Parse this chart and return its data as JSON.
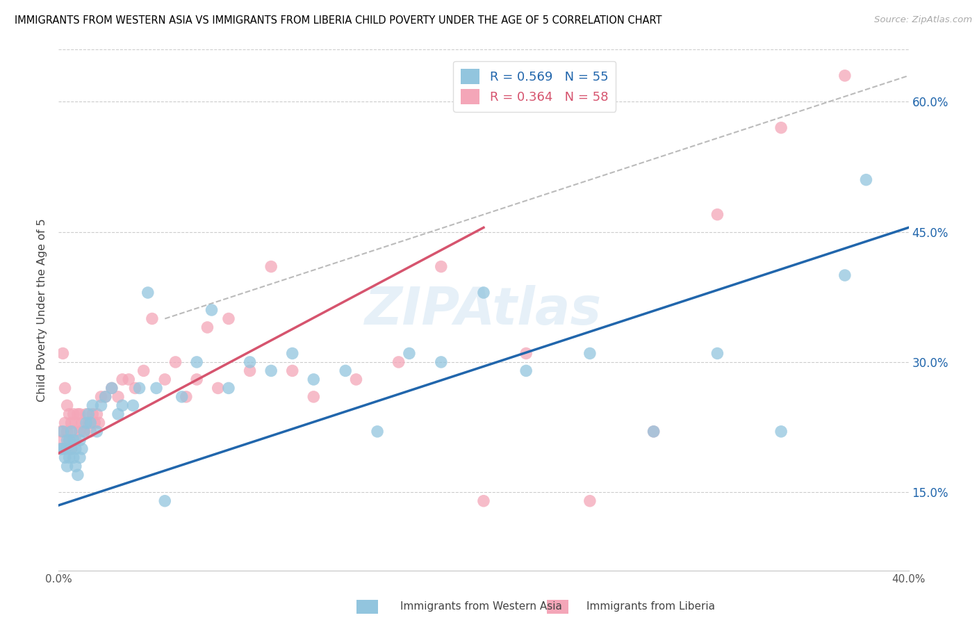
{
  "title": "IMMIGRANTS FROM WESTERN ASIA VS IMMIGRANTS FROM LIBERIA CHILD POVERTY UNDER THE AGE OF 5 CORRELATION CHART",
  "source": "Source: ZipAtlas.com",
  "ylabel": "Child Poverty Under the Age of 5",
  "xlim": [
    0.0,
    0.4
  ],
  "ylim": [
    0.06,
    0.66
  ],
  "x_ticks": [
    0.0,
    0.1,
    0.2,
    0.3,
    0.4
  ],
  "x_tick_labels": [
    "0.0%",
    "",
    "",
    "",
    "40.0%"
  ],
  "y_ticks": [
    0.15,
    0.3,
    0.45,
    0.6
  ],
  "y_tick_labels": [
    "15.0%",
    "30.0%",
    "45.0%",
    "60.0%"
  ],
  "legend_blue_label": "R = 0.569   N = 55",
  "legend_pink_label": "R = 0.364   N = 58",
  "bottom_legend_blue": "Immigrants from Western Asia",
  "bottom_legend_pink": "Immigrants from Liberia",
  "blue_color": "#92c5de",
  "pink_color": "#f4a6b8",
  "blue_line_color": "#2166ac",
  "pink_line_color": "#d6546e",
  "dashed_line_color": "#bbbbbb",
  "watermark": "ZIPAtlas",
  "blue_scatter_x": [
    0.001,
    0.002,
    0.002,
    0.003,
    0.003,
    0.004,
    0.004,
    0.005,
    0.005,
    0.006,
    0.006,
    0.007,
    0.007,
    0.008,
    0.008,
    0.009,
    0.01,
    0.01,
    0.011,
    0.012,
    0.013,
    0.014,
    0.015,
    0.016,
    0.018,
    0.02,
    0.022,
    0.025,
    0.028,
    0.03,
    0.035,
    0.038,
    0.042,
    0.046,
    0.05,
    0.058,
    0.065,
    0.072,
    0.08,
    0.09,
    0.1,
    0.11,
    0.12,
    0.135,
    0.15,
    0.165,
    0.18,
    0.2,
    0.22,
    0.25,
    0.28,
    0.31,
    0.34,
    0.37,
    0.38
  ],
  "blue_scatter_y": [
    0.2,
    0.2,
    0.22,
    0.19,
    0.2,
    0.21,
    0.18,
    0.19,
    0.21,
    0.2,
    0.22,
    0.19,
    0.21,
    0.2,
    0.18,
    0.17,
    0.21,
    0.19,
    0.2,
    0.22,
    0.23,
    0.24,
    0.23,
    0.25,
    0.22,
    0.25,
    0.26,
    0.27,
    0.24,
    0.25,
    0.25,
    0.27,
    0.38,
    0.27,
    0.14,
    0.26,
    0.3,
    0.36,
    0.27,
    0.3,
    0.29,
    0.31,
    0.28,
    0.29,
    0.22,
    0.31,
    0.3,
    0.38,
    0.29,
    0.31,
    0.22,
    0.31,
    0.22,
    0.4,
    0.51
  ],
  "pink_scatter_x": [
    0.001,
    0.001,
    0.002,
    0.002,
    0.003,
    0.003,
    0.004,
    0.004,
    0.005,
    0.005,
    0.006,
    0.006,
    0.007,
    0.007,
    0.008,
    0.008,
    0.009,
    0.01,
    0.01,
    0.011,
    0.012,
    0.013,
    0.014,
    0.015,
    0.016,
    0.017,
    0.018,
    0.019,
    0.02,
    0.022,
    0.025,
    0.028,
    0.03,
    0.033,
    0.036,
    0.04,
    0.044,
    0.05,
    0.055,
    0.06,
    0.065,
    0.07,
    0.075,
    0.08,
    0.09,
    0.1,
    0.11,
    0.12,
    0.14,
    0.16,
    0.18,
    0.2,
    0.22,
    0.25,
    0.28,
    0.31,
    0.34,
    0.37
  ],
  "pink_scatter_y": [
    0.2,
    0.22,
    0.21,
    0.31,
    0.23,
    0.27,
    0.22,
    0.25,
    0.21,
    0.24,
    0.2,
    0.23,
    0.22,
    0.24,
    0.21,
    0.23,
    0.24,
    0.22,
    0.24,
    0.23,
    0.22,
    0.24,
    0.23,
    0.22,
    0.24,
    0.23,
    0.24,
    0.23,
    0.26,
    0.26,
    0.27,
    0.26,
    0.28,
    0.28,
    0.27,
    0.29,
    0.35,
    0.28,
    0.3,
    0.26,
    0.28,
    0.34,
    0.27,
    0.35,
    0.29,
    0.41,
    0.29,
    0.26,
    0.28,
    0.3,
    0.41,
    0.14,
    0.31,
    0.14,
    0.22,
    0.47,
    0.57,
    0.63
  ],
  "blue_line_x": [
    0.0,
    0.4
  ],
  "blue_line_y": [
    0.135,
    0.455
  ],
  "pink_line_x": [
    0.0,
    0.2
  ],
  "pink_line_y": [
    0.195,
    0.455
  ],
  "dashed_line_x": [
    0.05,
    0.4
  ],
  "dashed_line_y": [
    0.35,
    0.63
  ]
}
